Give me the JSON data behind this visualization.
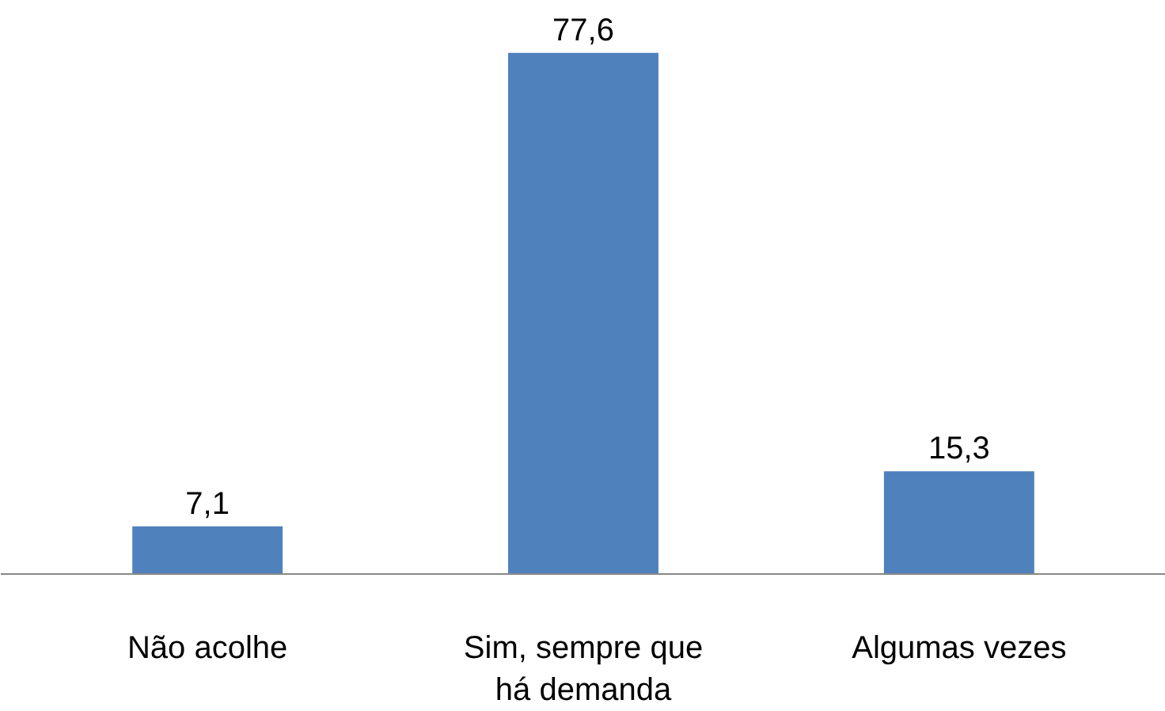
{
  "chart_data": {
    "type": "bar",
    "categories": [
      "Não acolhe",
      "Sim, sempre que há demanda",
      "Algumas vezes"
    ],
    "values": [
      7.1,
      77.6,
      15.3
    ],
    "value_labels": [
      "7,1",
      "77,6",
      "15,3"
    ],
    "color": "#4f81bd"
  }
}
